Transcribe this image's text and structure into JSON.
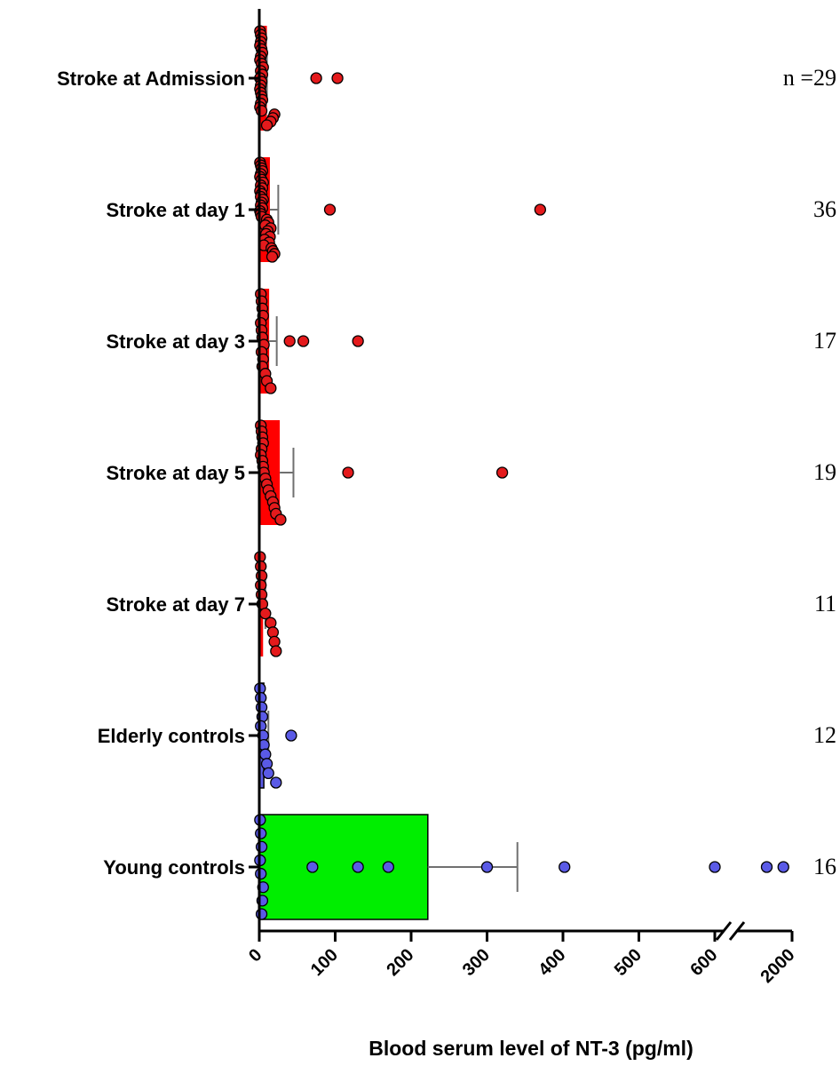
{
  "chart_data": {
    "type": "bar",
    "orientation": "horizontal",
    "title": "",
    "xlabel": "Blood serum level of NT-3 (pg/ml)",
    "ylabel": "",
    "x_axis": {
      "segments": [
        {
          "min": 0,
          "max": 600,
          "ticks": [
            0,
            100,
            200,
            300,
            400,
            500,
            600
          ]
        },
        {
          "min": 600,
          "max": 2000,
          "ticks": [
            2000
          ]
        }
      ],
      "break_between": [
        600,
        2000
      ]
    },
    "n_prefix": "n =",
    "categories": [
      {
        "name": "Stroke at Admission",
        "group": "stroke",
        "n": "29",
        "mean": 10,
        "error_upper": 10,
        "points": [
          1,
          2,
          3,
          2,
          1,
          3,
          4,
          2,
          1,
          3,
          5,
          2,
          4,
          1,
          3,
          2,
          1,
          2,
          3,
          4,
          2,
          1,
          3,
          20,
          18,
          15,
          10,
          75,
          103
        ]
      },
      {
        "name": "Stroke at day 1",
        "group": "stroke",
        "n": "36",
        "mean": 14,
        "error_upper": 25,
        "points": [
          1,
          2,
          3,
          4,
          2,
          1,
          3,
          5,
          2,
          4,
          1,
          3,
          2,
          5,
          3,
          2,
          4,
          1,
          2,
          3,
          10,
          12,
          8,
          15,
          11,
          9,
          14,
          7,
          13,
          6,
          16,
          18,
          20,
          17,
          93,
          370
        ]
      },
      {
        "name": "Stroke at day 3",
        "group": "stroke",
        "n": "17",
        "mean": 13,
        "error_upper": 23,
        "points": [
          2,
          3,
          4,
          5,
          2,
          3,
          4,
          6,
          3,
          5,
          4,
          8,
          10,
          15,
          40,
          58,
          130
        ]
      },
      {
        "name": "Stroke at day 5",
        "group": "stroke",
        "n": "19",
        "mean": 27,
        "error_upper": 45,
        "points": [
          2,
          3,
          4,
          5,
          3,
          2,
          4,
          5,
          6,
          8,
          10,
          12,
          15,
          18,
          20,
          22,
          28,
          117,
          320
        ]
      },
      {
        "name": "Stroke at day 7",
        "group": "stroke",
        "n": "11",
        "mean": 5,
        "error_upper": 8,
        "points": [
          1,
          2,
          3,
          2,
          3,
          4,
          8,
          15,
          18,
          20,
          22
        ]
      },
      {
        "name": "Elderly controls",
        "group": "control",
        "n": "12",
        "mean": 6,
        "error_upper": 12,
        "points": [
          1,
          2,
          3,
          4,
          2,
          5,
          6,
          8,
          10,
          12,
          22,
          42
        ]
      },
      {
        "name": "Young controls",
        "group": "control",
        "n": "16",
        "mean": 222,
        "error_upper": 340,
        "points": [
          1,
          2,
          3,
          1,
          2,
          5,
          4,
          3,
          70,
          130,
          170,
          300,
          402,
          600,
          1300,
          1760
        ]
      }
    ],
    "colors": {
      "stroke_bar": "#ff0000",
      "stroke_point": "#e41a1c",
      "control_point": "#5a5ae6",
      "young_bar": "#00ee00",
      "elderly_bar": "#5a5ae6",
      "error_bar": "#707070",
      "axis": "#000000"
    }
  }
}
